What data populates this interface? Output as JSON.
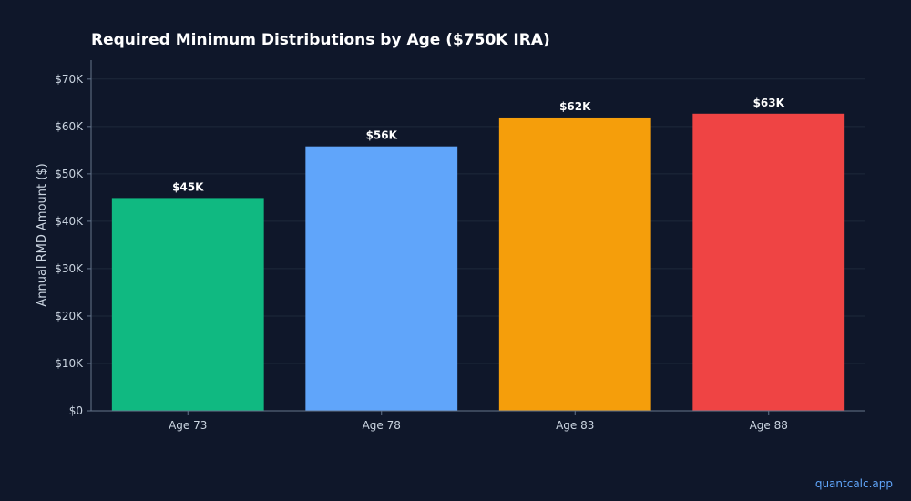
{
  "chart_data": {
    "type": "bar",
    "title": "Required Minimum Distributions by Age ($750K IRA)",
    "ylabel": "Annual RMD Amount ($)",
    "xlabel": "",
    "categories": [
      "Age 73",
      "Age 78",
      "Age 83",
      "Age 88"
    ],
    "values": [
      44900,
      55800,
      61900,
      62700
    ],
    "data_labels": [
      "$45K",
      "$56K",
      "$62K",
      "$63K"
    ],
    "colors": [
      "#10b981",
      "#60a5fa",
      "#f59e0b",
      "#ef4444"
    ],
    "ylim": [
      0,
      74000
    ],
    "yticks": [
      0,
      10000,
      20000,
      30000,
      40000,
      50000,
      60000,
      70000
    ],
    "ytick_labels": [
      "$0",
      "$10K",
      "$20K",
      "$30K",
      "$40K",
      "$50K",
      "$60K",
      "$70K"
    ],
    "grid": true,
    "legend": "none"
  },
  "watermark": "quantcalc.app"
}
